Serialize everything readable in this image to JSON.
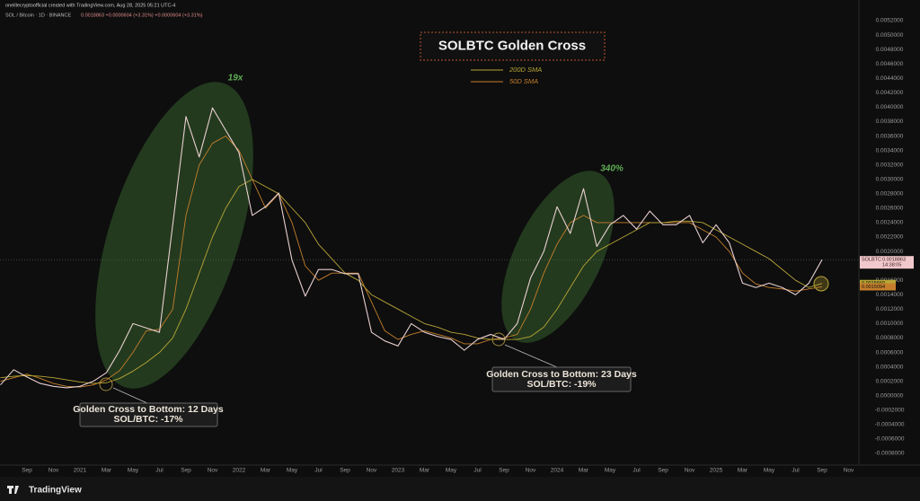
{
  "chart_data": {
    "type": "line",
    "header": "oneillecryptoofficial created with TradingView.com, Aug 28, 2025 05:21 UTC-4",
    "symbol": "SOL / Bitcoin · 1D · BINANCE",
    "symbol_values": "0.0018863 +0.0000604 (+3.31%) +0.0000604 (+3.31%)",
    "title": "SOLBTC Golden Cross",
    "price_tag": "SOLBTC",
    "price_time": "14:38:05",
    "brand": "TradingView",
    "annotations": [
      "19x",
      "340%",
      "Golden Cross to Bottom: 12 Days",
      "SOL/BTC: -17%",
      "Golden Cross to Bottom: 23 Days",
      "SOL/BTC: -19%"
    ],
    "x": [
      "2020-07",
      "2020-08",
      "2020-09",
      "2020-10",
      "2020-11",
      "2020-12",
      "2021-01",
      "2021-02",
      "2021-03",
      "2021-04",
      "2021-05",
      "2021-06",
      "2021-07",
      "2021-08",
      "2021-09",
      "2021-10",
      "2021-11",
      "2021-12",
      "2022-01",
      "2022-02",
      "2022-03",
      "2022-04",
      "2022-05",
      "2022-06",
      "2022-07",
      "2022-08",
      "2022-09",
      "2022-10",
      "2022-11",
      "2022-12",
      "2023-01",
      "2023-02",
      "2023-03",
      "2023-04",
      "2023-05",
      "2023-06",
      "2023-07",
      "2023-08",
      "2023-09",
      "2023-10",
      "2023-11",
      "2023-12",
      "2024-01",
      "2024-02",
      "2024-03",
      "2024-04",
      "2024-05",
      "2024-06",
      "2024-07",
      "2024-08",
      "2024-09",
      "2024-10",
      "2024-11",
      "2024-12",
      "2025-01",
      "2025-02",
      "2025-03",
      "2025-04",
      "2025-05",
      "2025-06",
      "2025-07",
      "2025-08",
      "2025-09"
    ],
    "series": [
      {
        "name": "SOLBTC",
        "color": "#e9cfd0",
        "value_labels": [
          null,
          null,
          null,
          null,
          null,
          null,
          null,
          null,
          null,
          null,
          null,
          null,
          null,
          null,
          null,
          null,
          null,
          null,
          null,
          null,
          null,
          null,
          null,
          null,
          null,
          null,
          null,
          null,
          null,
          null,
          null,
          null,
          null,
          null,
          null,
          null,
          null,
          null,
          null,
          null,
          null,
          null,
          null,
          null,
          null,
          null,
          null,
          null,
          null,
          null,
          null,
          null,
          null,
          null,
          null,
          null,
          null,
          null,
          null,
          null,
          null,
          null,
          "0.0018863"
        ],
        "values": [
          0.00015,
          0.00036,
          0.00026,
          0.00017,
          0.00013,
          0.00011,
          0.00013,
          0.0002,
          0.00032,
          0.00063,
          0.001,
          0.00094,
          0.00088,
          0.00237,
          0.00387,
          0.00331,
          0.00399,
          0.00368,
          0.00337,
          0.0025,
          0.00262,
          0.00281,
          0.00188,
          0.00138,
          0.00175,
          0.00175,
          0.00169,
          0.00169,
          0.00088,
          0.00076,
          0.00069,
          0.001,
          0.00088,
          0.00082,
          0.00078,
          0.00063,
          0.00078,
          0.00085,
          0.00078,
          0.001,
          0.00163,
          0.002,
          0.00262,
          0.00225,
          0.00287,
          0.00207,
          0.00237,
          0.0025,
          0.00231,
          0.00256,
          0.00237,
          0.00237,
          0.0025,
          0.00212,
          0.00237,
          0.00212,
          0.00156,
          0.0015,
          0.00156,
          0.0015,
          0.0014,
          0.00156,
          0.0018863
        ]
      },
      {
        "name": "200D SMA",
        "color": "#b8a537",
        "value_labels": [
          null,
          null,
          null,
          null,
          null,
          null,
          null,
          null,
          null,
          null,
          null,
          null,
          null,
          null,
          null,
          null,
          null,
          null,
          null,
          null,
          null,
          null,
          null,
          null,
          null,
          null,
          null,
          null,
          null,
          null,
          null,
          null,
          null,
          null,
          null,
          null,
          null,
          null,
          null,
          null,
          null,
          null,
          null,
          null,
          null,
          null,
          null,
          null,
          null,
          null,
          null,
          null,
          null,
          null,
          null,
          null,
          null,
          null,
          null,
          null,
          null,
          null,
          "0.0015560"
        ],
        "values": [
          0.00025,
          0.00027,
          0.00028,
          0.00027,
          0.00025,
          0.00022,
          0.00019,
          0.00017,
          0.00018,
          0.00024,
          0.00034,
          0.00046,
          0.0006,
          0.0008,
          0.0012,
          0.0017,
          0.0022,
          0.0026,
          0.0029,
          0.003,
          0.0029,
          0.0028,
          0.0026,
          0.0024,
          0.0021,
          0.0019,
          0.0017,
          0.0016,
          0.0014,
          0.0013,
          0.0012,
          0.0011,
          0.001,
          0.00095,
          0.00088,
          0.00085,
          0.0008,
          0.00078,
          0.00078,
          0.00078,
          0.00082,
          0.00095,
          0.0012,
          0.0015,
          0.0018,
          0.002,
          0.0021,
          0.0022,
          0.0023,
          0.0024,
          0.0024,
          0.00242,
          0.00242,
          0.0024,
          0.0023,
          0.0022,
          0.0021,
          0.002,
          0.0019,
          0.00175,
          0.0016,
          0.0015,
          0.001556
        ]
      },
      {
        "name": "50D SMA",
        "color": "#c57f2c",
        "value_labels": [
          null,
          null,
          null,
          null,
          null,
          null,
          null,
          null,
          null,
          null,
          null,
          null,
          null,
          null,
          null,
          null,
          null,
          null,
          null,
          null,
          null,
          null,
          null,
          null,
          null,
          null,
          null,
          null,
          null,
          null,
          null,
          null,
          null,
          null,
          null,
          null,
          null,
          null,
          null,
          null,
          null,
          null,
          null,
          null,
          null,
          null,
          null,
          null,
          null,
          null,
          null,
          null,
          null,
          null,
          null,
          null,
          null,
          null,
          null,
          null,
          null,
          null,
          "0.0015094"
        ],
        "values": [
          0.0002,
          0.00025,
          0.0003,
          0.00024,
          0.00017,
          0.00013,
          0.00012,
          0.00015,
          0.00022,
          0.00035,
          0.0006,
          0.0009,
          0.00092,
          0.0012,
          0.0025,
          0.0032,
          0.0035,
          0.0036,
          0.0034,
          0.003,
          0.0026,
          0.0028,
          0.0024,
          0.0018,
          0.0016,
          0.0017,
          0.0017,
          0.0017,
          0.0013,
          0.0009,
          0.00078,
          0.00085,
          0.0009,
          0.00085,
          0.0008,
          0.00072,
          0.00072,
          0.00078,
          0.0008,
          0.00085,
          0.0012,
          0.0017,
          0.0021,
          0.0024,
          0.0025,
          0.0024,
          0.0024,
          0.0024,
          0.0024,
          0.0024,
          0.0024,
          0.0024,
          0.0024,
          0.0023,
          0.0022,
          0.002,
          0.0017,
          0.00155,
          0.0015,
          0.00148,
          0.00145,
          0.00148,
          0.0015094
        ]
      }
    ],
    "xlim": [
      "2020-07",
      "2026-01"
    ],
    "xticks": [
      {
        "value": "2020-09",
        "label": "Sep"
      },
      {
        "value": "2020-11",
        "label": "Nov"
      },
      {
        "value": "2021-01",
        "label": "2021"
      },
      {
        "value": "2021-03",
        "label": "Mar"
      },
      {
        "value": "2021-05",
        "label": "May"
      },
      {
        "value": "2021-07",
        "label": "Jul"
      },
      {
        "value": "2021-09",
        "label": "Sep"
      },
      {
        "value": "2021-11",
        "label": "Nov"
      },
      {
        "value": "2022-01",
        "label": "2022"
      },
      {
        "value": "2022-03",
        "label": "Mar"
      },
      {
        "value": "2022-05",
        "label": "May"
      },
      {
        "value": "2022-07",
        "label": "Jul"
      },
      {
        "value": "2022-09",
        "label": "Sep"
      },
      {
        "value": "2022-11",
        "label": "Nov"
      },
      {
        "value": "2023-01",
        "label": "2023"
      },
      {
        "value": "2023-03",
        "label": "Mar"
      },
      {
        "value": "2023-05",
        "label": "May"
      },
      {
        "value": "2023-07",
        "label": "Jul"
      },
      {
        "value": "2023-09",
        "label": "Sep"
      },
      {
        "value": "2023-11",
        "label": "Nov"
      },
      {
        "value": "2024-01",
        "label": "2024"
      },
      {
        "value": "2024-03",
        "label": "Mar"
      },
      {
        "value": "2024-05",
        "label": "May"
      },
      {
        "value": "2024-07",
        "label": "Jul"
      },
      {
        "value": "2024-09",
        "label": "Sep"
      },
      {
        "value": "2024-11",
        "label": "Nov"
      },
      {
        "value": "2025-01",
        "label": "2025"
      },
      {
        "value": "2025-03",
        "label": "Mar"
      },
      {
        "value": "2025-05",
        "label": "May"
      },
      {
        "value": "2025-07",
        "label": "Jul"
      },
      {
        "value": "2025-09",
        "label": "Sep"
      },
      {
        "value": "2025-11",
        "label": "Nov"
      }
    ],
    "ylim": [
      -0.0008,
      0.0052
    ],
    "yticks": [
      {
        "value": 0.0052,
        "label": "0.0052000"
      },
      {
        "value": 0.005,
        "label": "0.0050000"
      },
      {
        "value": 0.0048,
        "label": "0.0048000"
      },
      {
        "value": 0.0046,
        "label": "0.0046000"
      },
      {
        "value": 0.0044,
        "label": "0.0044000"
      },
      {
        "value": 0.0042,
        "label": "0.0042000"
      },
      {
        "value": 0.004,
        "label": "0.0040000"
      },
      {
        "value": 0.0038,
        "label": "0.0038000"
      },
      {
        "value": 0.0036,
        "label": "0.0036000"
      },
      {
        "value": 0.0034,
        "label": "0.0034000"
      },
      {
        "value": 0.0032,
        "label": "0.0032000"
      },
      {
        "value": 0.003,
        "label": "0.0030000"
      },
      {
        "value": 0.0028,
        "label": "0.0028000"
      },
      {
        "value": 0.0026,
        "label": "0.0026000"
      },
      {
        "value": 0.0024,
        "label": "0.0024000"
      },
      {
        "value": 0.0022,
        "label": "0.0022000"
      },
      {
        "value": 0.002,
        "label": "0.0020000"
      },
      {
        "value": 0.0018,
        "label": "0.0018000"
      },
      {
        "value": 0.0016,
        "label": "0.0016000"
      },
      {
        "value": 0.0014,
        "label": "0.0014000"
      },
      {
        "value": 0.0012,
        "label": "0.0012000"
      },
      {
        "value": 0.001,
        "label": "0.0010000"
      },
      {
        "value": 0.0008,
        "label": "0.0008000"
      },
      {
        "value": 0.0006,
        "label": "0.0006000"
      },
      {
        "value": 0.0004,
        "label": "0.0004000"
      },
      {
        "value": 0.0002,
        "label": "0.0002000"
      },
      {
        "value": 0,
        "label": "0.0000000"
      },
      {
        "value": -0.0002,
        "label": "-0.0002000"
      },
      {
        "value": -0.0004,
        "label": "-0.0004000"
      },
      {
        "value": -0.0006,
        "label": "-0.0006000"
      },
      {
        "value": -0.0008,
        "label": "-0.0008000"
      }
    ],
    "grid": false
  }
}
